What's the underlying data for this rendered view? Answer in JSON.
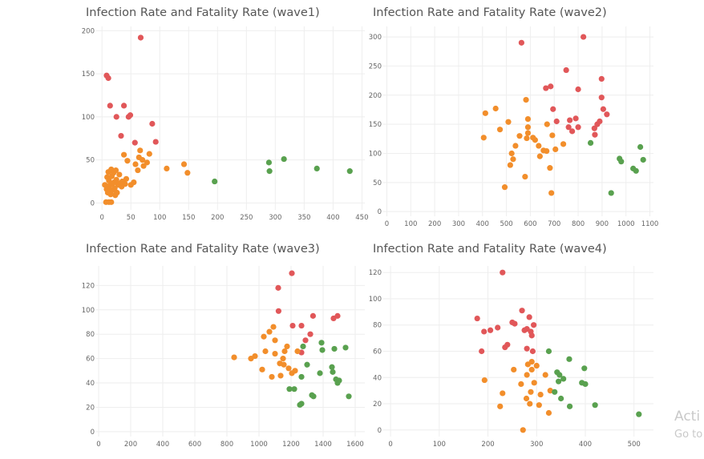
{
  "colors": {
    "red": "#e15759",
    "orange": "#f28e2b",
    "green": "#59a14f"
  },
  "watermark": {
    "line1": "Acti",
    "line2": "Go to"
  },
  "chart_data": [
    {
      "type": "scatter",
      "title": "Infection Rate and Fatality Rate (wave1)",
      "xlabel": "",
      "ylabel": "",
      "xlim": [
        -10,
        455
      ],
      "ylim": [
        -8,
        205
      ],
      "xticks": [
        0,
        50,
        100,
        150,
        200,
        250,
        300,
        350,
        400,
        450
      ],
      "yticks": [
        0,
        50,
        100,
        150,
        200
      ],
      "series": [
        {
          "color": "red",
          "points": [
            [
              8,
              148
            ],
            [
              11,
              145
            ],
            [
              14,
              113
            ],
            [
              25,
              100
            ],
            [
              33,
              78
            ],
            [
              38,
              113
            ],
            [
              46,
              100
            ],
            [
              49,
              102
            ],
            [
              57,
              70
            ],
            [
              67,
              192
            ],
            [
              87,
              92
            ],
            [
              93,
              71
            ]
          ]
        },
        {
          "color": "orange",
          "points": [
            [
              5,
              21
            ],
            [
              8,
              16
            ],
            [
              9,
              30
            ],
            [
              10,
              12
            ],
            [
              11,
              36
            ],
            [
              12,
              26
            ],
            [
              13,
              20
            ],
            [
              14,
              14
            ],
            [
              15,
              10
            ],
            [
              16,
              39
            ],
            [
              17,
              31
            ],
            [
              18,
              22
            ],
            [
              19,
              15
            ],
            [
              20,
              35
            ],
            [
              21,
              24
            ],
            [
              22,
              17
            ],
            [
              23,
              9
            ],
            [
              24,
              38
            ],
            [
              25,
              27
            ],
            [
              26,
              12
            ],
            [
              28,
              21
            ],
            [
              30,
              33
            ],
            [
              32,
              23
            ],
            [
              34,
              19
            ],
            [
              35,
              25
            ],
            [
              38,
              56
            ],
            [
              40,
              22
            ],
            [
              42,
              28
            ],
            [
              44,
              49
            ],
            [
              50,
              21
            ],
            [
              55,
              24
            ],
            [
              58,
              45
            ],
            [
              62,
              38
            ],
            [
              64,
              53
            ],
            [
              66,
              61
            ],
            [
              70,
              50
            ],
            [
              72,
              43
            ],
            [
              78,
              47
            ],
            [
              82,
              57
            ],
            [
              112,
              40
            ],
            [
              142,
              45
            ],
            [
              148,
              35
            ]
          ]
        },
        {
          "color": "green",
          "points": [
            [
              195,
              25
            ],
            [
              289,
              47
            ],
            [
              290,
              37
            ],
            [
              315,
              51
            ],
            [
              372,
              40
            ],
            [
              429,
              37
            ]
          ]
        },
        {
          "color": "orange",
          "points": [
            [
              7,
              1
            ],
            [
              12,
              1
            ],
            [
              16,
              1
            ]
          ]
        }
      ]
    },
    {
      "type": "scatter",
      "title": "Infection Rate and Fatality Rate (wave2)",
      "xlabel": "",
      "ylabel": "",
      "xlim": [
        -15,
        1115
      ],
      "ylim": [
        -8,
        318
      ],
      "xticks": [
        0,
        100,
        200,
        300,
        400,
        500,
        600,
        700,
        800,
        900,
        1000,
        1100
      ],
      "yticks": [
        0,
        50,
        100,
        150,
        200,
        250,
        300
      ],
      "series": [
        {
          "color": "red",
          "points": [
            [
              563,
              290
            ],
            [
              665,
              212
            ],
            [
              685,
              215
            ],
            [
              695,
              176
            ],
            [
              710,
              155
            ],
            [
              750,
              243
            ],
            [
              760,
              145
            ],
            [
              765,
              157
            ],
            [
              775,
              138
            ],
            [
              790,
              160
            ],
            [
              800,
              210
            ],
            [
              800,
              145
            ],
            [
              822,
              300
            ],
            [
              868,
              143
            ],
            [
              870,
              132
            ],
            [
              880,
              150
            ],
            [
              890,
              155
            ],
            [
              898,
              196
            ],
            [
              898,
              228
            ],
            [
              905,
              176
            ],
            [
              920,
              167
            ]
          ]
        },
        {
          "color": "orange",
          "points": [
            [
              405,
              127
            ],
            [
              412,
              169
            ],
            [
              455,
              177
            ],
            [
              473,
              141
            ],
            [
              493,
              42
            ],
            [
              508,
              154
            ],
            [
              516,
              80
            ],
            [
              522,
              100
            ],
            [
              528,
              90
            ],
            [
              538,
              113
            ],
            [
              555,
              130
            ],
            [
              578,
              60
            ],
            [
              582,
              192
            ],
            [
              585,
              126
            ],
            [
              590,
              135
            ],
            [
              590,
              145
            ],
            [
              590,
              159
            ],
            [
              611,
              127
            ],
            [
              620,
              123
            ],
            [
              635,
              113
            ],
            [
              640,
              95
            ],
            [
              655,
              105
            ],
            [
              668,
              104
            ],
            [
              670,
              150
            ],
            [
              682,
              75
            ],
            [
              688,
              32
            ],
            [
              692,
              131
            ],
            [
              705,
              107
            ],
            [
              738,
              116
            ]
          ]
        },
        {
          "color": "green",
          "points": [
            [
              852,
              118
            ],
            [
              938,
              32
            ],
            [
              973,
              91
            ],
            [
              980,
              86
            ],
            [
              1030,
              74
            ],
            [
              1042,
              70
            ],
            [
              1060,
              111
            ],
            [
              1072,
              89
            ]
          ]
        }
      ]
    },
    {
      "type": "scatter",
      "title": "Infection Rate and Fatality Rate (wave3)",
      "xlabel": "",
      "ylabel": "",
      "xlim": [
        -15,
        1660
      ],
      "ylim": [
        -4,
        136
      ],
      "xticks": [
        0,
        200,
        400,
        600,
        800,
        1000,
        1200,
        1400,
        1600
      ],
      "yticks": [
        0,
        20,
        40,
        60,
        80,
        100,
        120
      ],
      "series": [
        {
          "color": "red",
          "points": [
            [
              1120,
              118
            ],
            [
              1122,
              99
            ],
            [
              1205,
              130
            ],
            [
              1210,
              87
            ],
            [
              1265,
              87
            ],
            [
              1265,
              65
            ],
            [
              1290,
              75
            ],
            [
              1320,
              80
            ],
            [
              1337,
              95
            ],
            [
              1465,
              93
            ],
            [
              1490,
              95
            ]
          ]
        },
        {
          "color": "orange",
          "points": [
            [
              845,
              61
            ],
            [
              950,
              60
            ],
            [
              975,
              62
            ],
            [
              1020,
              51
            ],
            [
              1030,
              78
            ],
            [
              1040,
              66
            ],
            [
              1065,
              82
            ],
            [
              1080,
              45
            ],
            [
              1090,
              86
            ],
            [
              1100,
              75
            ],
            [
              1100,
              64
            ],
            [
              1130,
              56
            ],
            [
              1135,
              46
            ],
            [
              1150,
              60
            ],
            [
              1155,
              55
            ],
            [
              1160,
              66
            ],
            [
              1175,
              70
            ],
            [
              1185,
              52
            ],
            [
              1205,
              48
            ],
            [
              1225,
              50
            ],
            [
              1240,
              66
            ]
          ]
        },
        {
          "color": "green",
          "points": [
            [
              1190,
              35
            ],
            [
              1220,
              35
            ],
            [
              1255,
              22
            ],
            [
              1265,
              23
            ],
            [
              1265,
              45
            ],
            [
              1275,
              70
            ],
            [
              1300,
              55
            ],
            [
              1330,
              30
            ],
            [
              1340,
              29
            ],
            [
              1380,
              48
            ],
            [
              1390,
              73
            ],
            [
              1395,
              67
            ],
            [
              1455,
              53
            ],
            [
              1460,
              49
            ],
            [
              1470,
              68
            ],
            [
              1480,
              43
            ],
            [
              1490,
              40
            ],
            [
              1500,
              42
            ],
            [
              1540,
              69
            ],
            [
              1560,
              29
            ]
          ]
        }
      ]
    },
    {
      "type": "scatter",
      "title": "Infection Rate and Fatality Rate (wave4)",
      "xlabel": "",
      "ylabel": "",
      "xlim": [
        -15,
        540
      ],
      "ylim": [
        -5,
        125
      ],
      "xticks": [
        0,
        100,
        200,
        300,
        400,
        500
      ],
      "yticks": [
        0,
        20,
        40,
        60,
        80,
        100,
        120
      ],
      "series": [
        {
          "color": "red",
          "points": [
            [
              178,
              85
            ],
            [
              187,
              60
            ],
            [
              192,
              75
            ],
            [
              205,
              76
            ],
            [
              220,
              78
            ],
            [
              230,
              120
            ],
            [
              235,
              63
            ],
            [
              240,
              65
            ],
            [
              250,
              82
            ],
            [
              255,
              81
            ],
            [
              270,
              91
            ],
            [
              275,
              76
            ],
            [
              280,
              77
            ],
            [
              280,
              62
            ],
            [
              285,
              86
            ],
            [
              288,
              75
            ],
            [
              290,
              72
            ],
            [
              292,
              60
            ],
            [
              294,
              80
            ]
          ]
        },
        {
          "color": "orange",
          "points": [
            [
              193,
              38
            ],
            [
              225,
              18
            ],
            [
              230,
              28
            ],
            [
              253,
              46
            ],
            [
              268,
              35
            ],
            [
              272,
              0
            ],
            [
              279,
              24
            ],
            [
              280,
              42
            ],
            [
              282,
              50
            ],
            [
              286,
              20
            ],
            [
              288,
              29
            ],
            [
              290,
              46
            ],
            [
              290,
              52
            ],
            [
              295,
              36
            ],
            [
              300,
              49
            ],
            [
              305,
              19
            ],
            [
              308,
              27
            ],
            [
              318,
              42
            ],
            [
              325,
              13
            ],
            [
              328,
              30
            ]
          ]
        },
        {
          "color": "green",
          "points": [
            [
              325,
              60
            ],
            [
              337,
              29
            ],
            [
              342,
              44
            ],
            [
              345,
              37
            ],
            [
              347,
              42
            ],
            [
              355,
              39
            ],
            [
              350,
              24
            ],
            [
              367,
              54
            ],
            [
              368,
              18
            ],
            [
              393,
              36
            ],
            [
              400,
              35
            ],
            [
              398,
              47
            ],
            [
              420,
              19
            ],
            [
              510,
              12
            ]
          ]
        }
      ]
    }
  ]
}
